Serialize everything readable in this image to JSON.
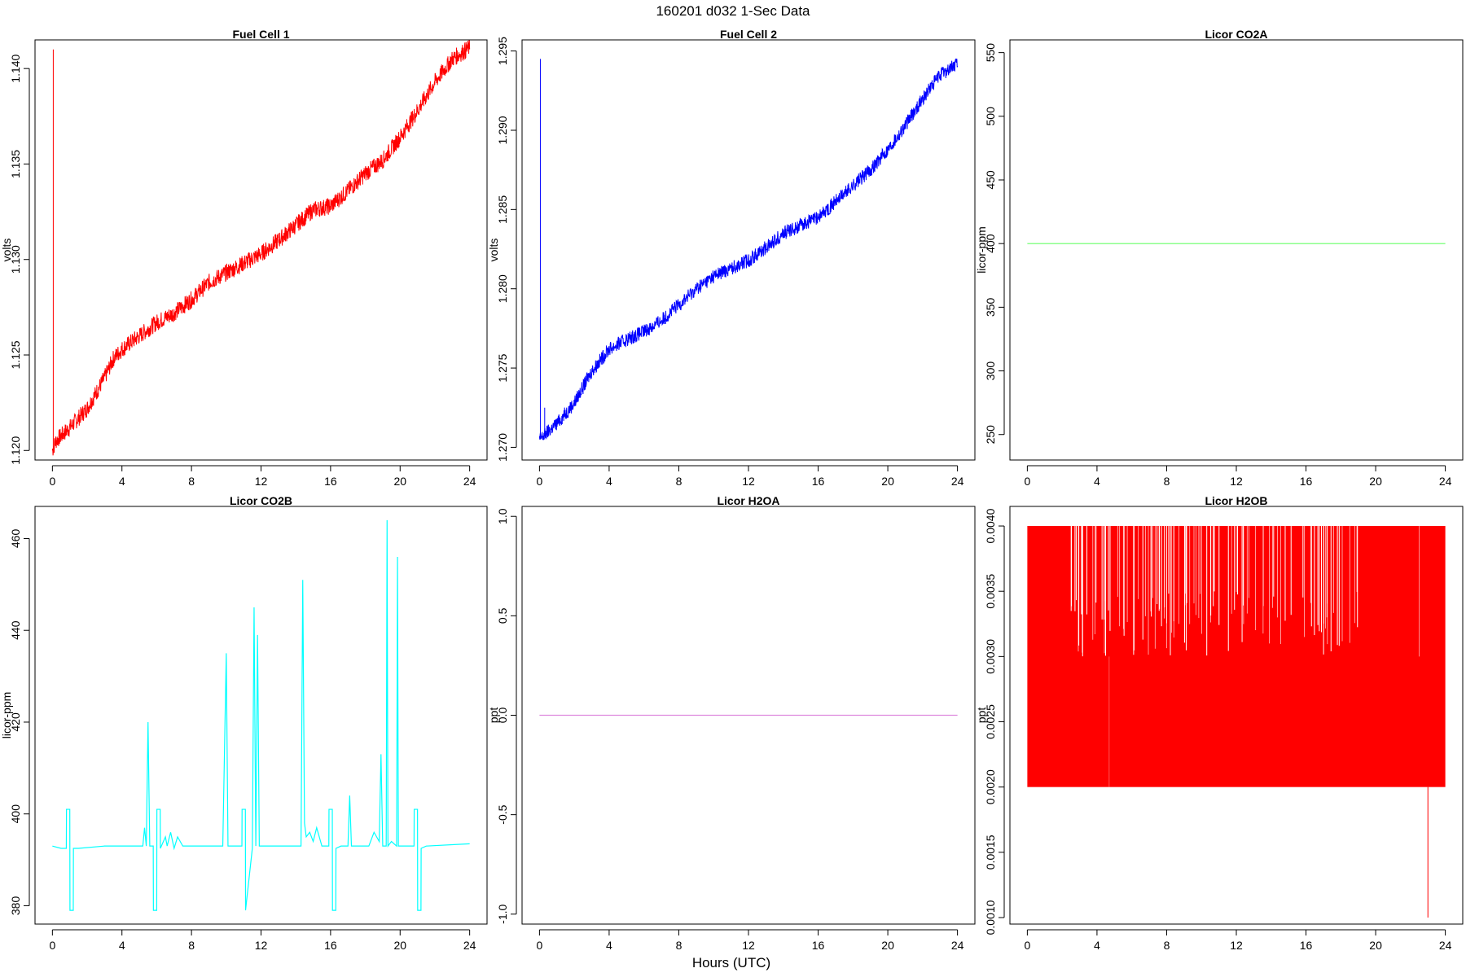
{
  "figure": {
    "title": "160201   d032   1-Sec Data",
    "xlabel": "Hours (UTC)"
  },
  "chart_data": [
    {
      "type": "line",
      "title": "Fuel Cell 1",
      "ylabel": "volts",
      "color": "#ff0000",
      "xlim": [
        -1,
        25
      ],
      "ylim": [
        1.1195,
        1.1415
      ],
      "xticks": [
        0,
        4,
        8,
        12,
        16,
        20,
        24
      ],
      "xtick_labels": [
        "0",
        "4",
        "8",
        "12",
        "16",
        "20",
        "24"
      ],
      "yticks": [
        1.12,
        1.125,
        1.13,
        1.135,
        1.14
      ],
      "ytick_labels": [
        "1.120",
        "1.125",
        "1.130",
        "1.135",
        "1.140"
      ],
      "band": 0.0009,
      "x": [
        0,
        0.2,
        1,
        2,
        3,
        3.5,
        4,
        5,
        6,
        7,
        8,
        9,
        10,
        11,
        12,
        13,
        14,
        15,
        16,
        17,
        18,
        19,
        20,
        21,
        22,
        23,
        24
      ],
      "y": [
        1.12,
        1.1205,
        1.1212,
        1.1222,
        1.1238,
        1.1248,
        1.1253,
        1.126,
        1.1267,
        1.1272,
        1.1279,
        1.1288,
        1.1293,
        1.1298,
        1.1303,
        1.131,
        1.1318,
        1.1326,
        1.1328,
        1.1336,
        1.1345,
        1.1352,
        1.1364,
        1.1378,
        1.1393,
        1.1405,
        1.1411
      ],
      "spikes": [
        {
          "x": 0.05,
          "y": 1.141
        }
      ]
    },
    {
      "type": "line",
      "title": "Fuel Cell 2",
      "ylabel": "volts",
      "color": "#0000ff",
      "xlim": [
        -1,
        25
      ],
      "ylim": [
        1.2692,
        1.2957
      ],
      "xticks": [
        0,
        4,
        8,
        12,
        16,
        20,
        24
      ],
      "xtick_labels": [
        "0",
        "4",
        "8",
        "12",
        "16",
        "20",
        "24"
      ],
      "yticks": [
        1.27,
        1.275,
        1.28,
        1.285,
        1.29,
        1.295
      ],
      "ytick_labels": [
        "1.270",
        "1.275",
        "1.280",
        "1.285",
        "1.290",
        "1.295"
      ],
      "band": 0.0009,
      "x": [
        0,
        0.5,
        1,
        2,
        3,
        4,
        5,
        6,
        7,
        8,
        9,
        10,
        11,
        12,
        13,
        14,
        15,
        16,
        17,
        18,
        19,
        20,
        21,
        22,
        23,
        24
      ],
      "y": [
        1.2705,
        1.271,
        1.2715,
        1.2728,
        1.2748,
        1.2762,
        1.2768,
        1.2773,
        1.278,
        1.279,
        1.28,
        1.2808,
        1.2813,
        1.2818,
        1.2826,
        1.2835,
        1.284,
        1.2845,
        1.2855,
        1.2865,
        1.2875,
        1.2888,
        1.2903,
        1.292,
        1.2935,
        1.2942
      ],
      "spikes": [
        {
          "x": 0.05,
          "y": 1.2945
        },
        {
          "x": 0.3,
          "y": 1.2725
        }
      ]
    },
    {
      "type": "line",
      "title": "Licor CO2A",
      "ylabel": "licor-ppm",
      "color": "#66ff66",
      "xlim": [
        -1,
        25
      ],
      "ylim": [
        230,
        560
      ],
      "xticks": [
        0,
        4,
        8,
        12,
        16,
        20,
        24
      ],
      "xtick_labels": [
        "0",
        "4",
        "8",
        "12",
        "16",
        "20",
        "24"
      ],
      "yticks": [
        250,
        300,
        350,
        400,
        450,
        500,
        550
      ],
      "ytick_labels": [
        "250",
        "300",
        "350",
        "400",
        "450",
        "500",
        "550"
      ],
      "band": 0,
      "x": [
        0,
        24
      ],
      "y": [
        400,
        400
      ],
      "spikes": []
    },
    {
      "type": "line",
      "title": "Licor CO2B",
      "ylabel": "licor-ppm",
      "color": "#00ffff",
      "xlim": [
        -1,
        25
      ],
      "ylim": [
        376,
        467
      ],
      "xticks": [
        0,
        4,
        8,
        12,
        16,
        20,
        24
      ],
      "xtick_labels": [
        "0",
        "4",
        "8",
        "12",
        "16",
        "20",
        "24"
      ],
      "yticks": [
        380,
        400,
        420,
        440,
        460
      ],
      "ytick_labels": [
        "380",
        "400",
        "420",
        "440",
        "460"
      ],
      "band": 0,
      "x": [
        0,
        0.5,
        0.8,
        0.81,
        1.0,
        1.01,
        1.2,
        1.21,
        1.5,
        3,
        4.5,
        5.2,
        5.3,
        5.4,
        5.5,
        5.6,
        5.8,
        5.81,
        6.0,
        6.01,
        6.2,
        6.21,
        6.5,
        6.6,
        6.8,
        7.0,
        7.2,
        7.5,
        9,
        9.8,
        10.0,
        10.1,
        10.2,
        10.9,
        10.91,
        11.1,
        11.11,
        11.5,
        11.6,
        11.7,
        11.8,
        11.9,
        12.5,
        14.0,
        14.3,
        14.4,
        14.5,
        14.6,
        14.8,
        15.0,
        15.2,
        15.5,
        15.9,
        15.91,
        16.1,
        16.11,
        16.3,
        16.31,
        16.6,
        17.0,
        17.1,
        17.2,
        17.3,
        18.2,
        18.5,
        18.8,
        18.9,
        19.0,
        19.2,
        19.25,
        19.3,
        19.5,
        19.8,
        19.85,
        19.9,
        20.5,
        20.8,
        20.81,
        21.0,
        21.01,
        21.2,
        21.21,
        21.5,
        24
      ],
      "y": [
        393,
        392.5,
        392.5,
        401,
        401,
        379,
        379,
        392.5,
        392.5,
        393,
        393,
        393,
        397,
        393,
        420,
        393,
        393,
        379,
        379,
        401,
        401,
        392.5,
        395,
        393,
        396,
        392.5,
        395,
        393,
        393,
        393,
        435,
        393,
        393,
        393,
        401,
        401,
        379,
        392.5,
        445,
        393,
        439,
        393,
        393,
        393,
        393,
        451,
        398,
        395,
        396,
        394,
        397,
        393,
        393,
        401,
        401,
        379,
        379,
        392.5,
        393,
        393,
        404,
        393,
        393,
        393,
        396,
        394,
        413,
        393,
        393,
        464,
        393,
        394,
        393,
        456,
        393,
        393,
        393,
        401,
        401,
        379,
        379,
        392.5,
        393,
        393.5
      ],
      "spikes": []
    },
    {
      "type": "line",
      "title": "Licor H2OA",
      "ylabel": "ppt",
      "color": "#dd88dd",
      "xlim": [
        -1,
        25
      ],
      "ylim": [
        -1.05,
        1.05
      ],
      "xticks": [
        0,
        4,
        8,
        12,
        16,
        20,
        24
      ],
      "xtick_labels": [
        "0",
        "4",
        "8",
        "12",
        "16",
        "20",
        "24"
      ],
      "yticks": [
        -1.0,
        -0.5,
        0.0,
        0.5,
        1.0
      ],
      "ytick_labels": [
        "-1.0",
        "-0.5",
        "0.0",
        "0.5",
        "1.0"
      ],
      "band": 0,
      "x": [
        0,
        24
      ],
      "y": [
        0,
        0
      ],
      "spikes": []
    },
    {
      "type": "area",
      "title": "Licor H2OB",
      "ylabel": "ppt",
      "color": "#ff0000",
      "xlim": [
        -1,
        25
      ],
      "ylim": [
        0.00095,
        0.00415
      ],
      "xticks": [
        0,
        4,
        8,
        12,
        16,
        20,
        24
      ],
      "xtick_labels": [
        "0",
        "4",
        "8",
        "12",
        "16",
        "20",
        "24"
      ],
      "yticks": [
        0.001,
        0.0015,
        0.002,
        0.0025,
        0.003,
        0.0035,
        0.004
      ],
      "ytick_labels": [
        "0.0010",
        "0.0015",
        "0.0020",
        "0.0025",
        "0.0030",
        "0.0035",
        "0.0040"
      ],
      "band": 0,
      "x": [
        0,
        24
      ],
      "y": [
        0.002,
        0.004
      ],
      "spikes": [
        {
          "x": 23.0,
          "y": 0.001
        }
      ]
    }
  ]
}
